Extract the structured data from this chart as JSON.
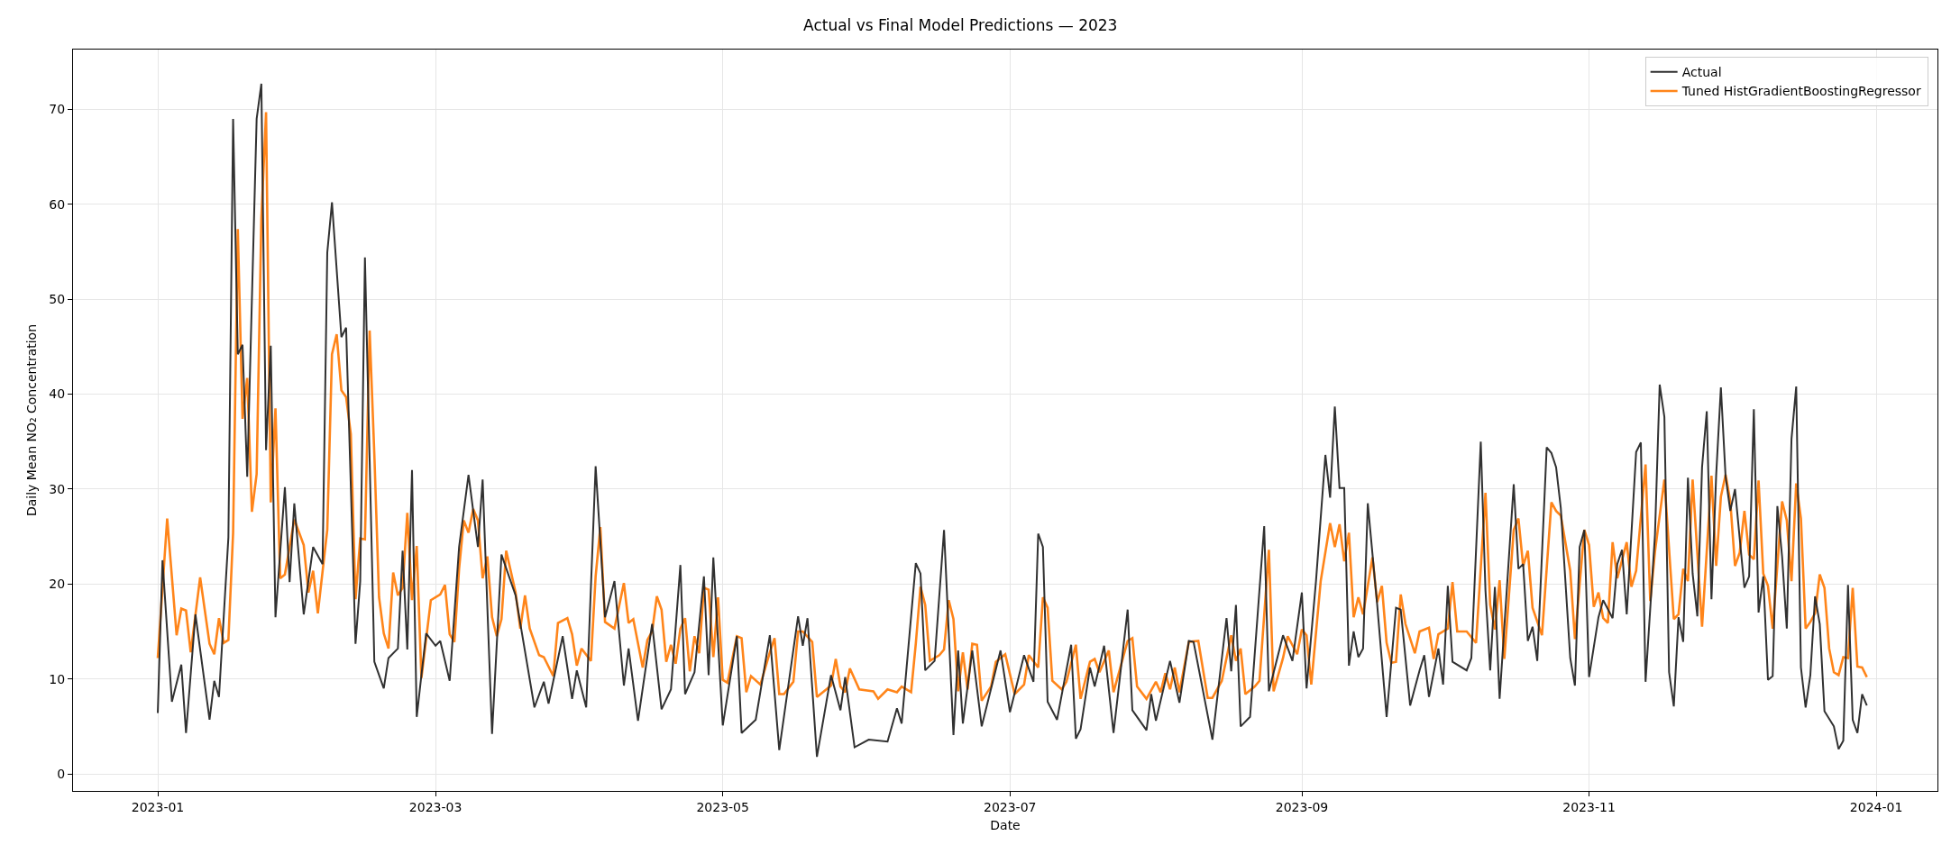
{
  "chart_data": {
    "type": "line",
    "title": "Actual vs Final Model Predictions — 2023",
    "xlabel": "Date",
    "ylabel": "Daily Mean NO₂ Concentration",
    "xlim": [
      "2022-12-14",
      "2024-01-14"
    ],
    "xticks": [
      {
        "value": "2023-01-01",
        "label": "2023-01"
      },
      {
        "value": "2023-03-01",
        "label": "2023-03"
      },
      {
        "value": "2023-05-01",
        "label": "2023-05"
      },
      {
        "value": "2023-07-01",
        "label": "2023-07"
      },
      {
        "value": "2023-09-01",
        "label": "2023-09"
      },
      {
        "value": "2023-11-01",
        "label": "2023-11"
      },
      {
        "value": "2024-01-01",
        "label": "2024-01"
      }
    ],
    "ylim": [
      -1.8,
      76.3
    ],
    "yticks": [
      0,
      10,
      20,
      30,
      40,
      50,
      60,
      70
    ],
    "grid": true,
    "legend": "top right",
    "marker": "none",
    "line_style": "solid",
    "series": [
      {
        "name": "Actual",
        "color": "#262626",
        "x": [
          "2023-01-01",
          "2023-01-02",
          "2023-01-04",
          "2023-01-06",
          "2023-01-07",
          "2023-01-09",
          "2023-01-12",
          "2023-01-13",
          "2023-01-14",
          "2023-01-16",
          "2023-01-17",
          "2023-01-18",
          "2023-01-19",
          "2023-01-20",
          "2023-01-22",
          "2023-01-23",
          "2023-01-24",
          "2023-01-25",
          "2023-01-26",
          "2023-01-28",
          "2023-01-29",
          "2023-01-30",
          "2023-02-01",
          "2023-02-03",
          "2023-02-05",
          "2023-02-06",
          "2023-02-07",
          "2023-02-09",
          "2023-02-10",
          "2023-02-12",
          "2023-02-13",
          "2023-02-14",
          "2023-02-16",
          "2023-02-18",
          "2023-02-19",
          "2023-02-21",
          "2023-02-22",
          "2023-02-23",
          "2023-02-24",
          "2023-02-25",
          "2023-02-27",
          "2023-03-01",
          "2023-03-02",
          "2023-03-04",
          "2023-03-06",
          "2023-03-08",
          "2023-03-10",
          "2023-03-11",
          "2023-03-13",
          "2023-03-15",
          "2023-03-18",
          "2023-03-22",
          "2023-03-24",
          "2023-03-25",
          "2023-03-28",
          "2023-03-30",
          "2023-03-31",
          "2023-04-02",
          "2023-04-04",
          "2023-04-06",
          "2023-04-08",
          "2023-04-10",
          "2023-04-11",
          "2023-04-13",
          "2023-04-16",
          "2023-04-18",
          "2023-04-20",
          "2023-04-22",
          "2023-04-23",
          "2023-04-25",
          "2023-04-27",
          "2023-04-28",
          "2023-04-29",
          "2023-05-01",
          "2023-05-04",
          "2023-05-05",
          "2023-05-08",
          "2023-05-11",
          "2023-05-13",
          "2023-05-17",
          "2023-05-18",
          "2023-05-19",
          "2023-05-21",
          "2023-05-24",
          "2023-05-26",
          "2023-05-27",
          "2023-05-29",
          "2023-06-01",
          "2023-06-05",
          "2023-06-07",
          "2023-06-08",
          "2023-06-11",
          "2023-06-12",
          "2023-06-13",
          "2023-06-15",
          "2023-06-17",
          "2023-06-19",
          "2023-06-20",
          "2023-06-21",
          "2023-06-23",
          "2023-06-25",
          "2023-06-29",
          "2023-07-01",
          "2023-07-04",
          "2023-07-06",
          "2023-07-07",
          "2023-07-08",
          "2023-07-09",
          "2023-07-11",
          "2023-07-14",
          "2023-07-15",
          "2023-07-16",
          "2023-07-18",
          "2023-07-19",
          "2023-07-21",
          "2023-07-23",
          "2023-07-26",
          "2023-07-27",
          "2023-07-30",
          "2023-07-31",
          "2023-08-01",
          "2023-08-04",
          "2023-08-06",
          "2023-08-08",
          "2023-08-09",
          "2023-08-13",
          "2023-08-16",
          "2023-08-17",
          "2023-08-18",
          "2023-08-19",
          "2023-08-21",
          "2023-08-24",
          "2023-08-25",
          "2023-08-28",
          "2023-08-30",
          "2023-09-01",
          "2023-09-02",
          "2023-09-04",
          "2023-09-06",
          "2023-09-07",
          "2023-09-08",
          "2023-09-09",
          "2023-09-10",
          "2023-09-11",
          "2023-09-12",
          "2023-09-13",
          "2023-09-14",
          "2023-09-15",
          "2023-09-17",
          "2023-09-19",
          "2023-09-21",
          "2023-09-22",
          "2023-09-24",
          "2023-09-26",
          "2023-09-27",
          "2023-09-28",
          "2023-09-30",
          "2023-10-01",
          "2023-10-02",
          "2023-10-03",
          "2023-10-06",
          "2023-10-07",
          "2023-10-09",
          "2023-10-10",
          "2023-10-11",
          "2023-10-12",
          "2023-10-13",
          "2023-10-16",
          "2023-10-17",
          "2023-10-18",
          "2023-10-19",
          "2023-10-20",
          "2023-10-21",
          "2023-10-23",
          "2023-10-24",
          "2023-10-25",
          "2023-10-26",
          "2023-10-28",
          "2023-10-29",
          "2023-10-30",
          "2023-10-31",
          "2023-11-01",
          "2023-11-03",
          "2023-11-04",
          "2023-11-06",
          "2023-11-07",
          "2023-11-08",
          "2023-11-09",
          "2023-11-11",
          "2023-11-12",
          "2023-11-13",
          "2023-11-15",
          "2023-11-16",
          "2023-11-17",
          "2023-11-18",
          "2023-11-19",
          "2023-11-20",
          "2023-11-21",
          "2023-11-22",
          "2023-11-23",
          "2023-11-24",
          "2023-11-25",
          "2023-11-26",
          "2023-11-27",
          "2023-11-28",
          "2023-11-29",
          "2023-11-30",
          "2023-12-01",
          "2023-12-02",
          "2023-12-04",
          "2023-12-05",
          "2023-12-06",
          "2023-12-07",
          "2023-12-08",
          "2023-12-09",
          "2023-12-10",
          "2023-12-11",
          "2023-12-12",
          "2023-12-13",
          "2023-12-14",
          "2023-12-15",
          "2023-12-16",
          "2023-12-17",
          "2023-12-18",
          "2023-12-19",
          "2023-12-20",
          "2023-12-21",
          "2023-12-23",
          "2023-12-24",
          "2023-12-25",
          "2023-12-26",
          "2023-12-27",
          "2023-12-28",
          "2023-12-29",
          "2023-12-30"
        ],
        "values": [
          6.4,
          22.5,
          7.6,
          11.5,
          4.3,
          16.8,
          5.7,
          9.8,
          8.1,
          24.9,
          69,
          44.2,
          45.2,
          31.3,
          69,
          72.7,
          34.1,
          45.1,
          16.5,
          30.2,
          20.2,
          28.5,
          16.8,
          23.9,
          22.1,
          54.9,
          60.2,
          46,
          47,
          13.7,
          20.3,
          54.4,
          11.8,
          9,
          12.2,
          13.2,
          23.5,
          13.1,
          32,
          6,
          14.8,
          13.5,
          14,
          9.8,
          23.9,
          31.5,
          23.9,
          31,
          4.2,
          23.1,
          18.8,
          7,
          9.7,
          7.4,
          14.5,
          7.9,
          10.9,
          7,
          32.4,
          16.5,
          20.3,
          9.3,
          13.2,
          5.6,
          15.8,
          6.8,
          8.9,
          22,
          8.4,
          10.7,
          20.8,
          10.4,
          22.8,
          5.1,
          14.5,
          4.3,
          5.7,
          14.6,
          2.5,
          16.6,
          13.5,
          16.4,
          1.8,
          10.4,
          6.7,
          10.2,
          2.8,
          3.6,
          3.4,
          6.9,
          5.3,
          22.2,
          21.1,
          10.9,
          11.9,
          25.7,
          4.1,
          13,
          5.3,
          13,
          5,
          13,
          6.5,
          12.5,
          9.7,
          25.3,
          23.9,
          7.6,
          5.7,
          13.6,
          3.7,
          4.7,
          11.2,
          9.2,
          13.5,
          4.3,
          17.3,
          6.7,
          4.6,
          8.4,
          5.6,
          11.9,
          7.5,
          14,
          13.9,
          3.6,
          16.4,
          10.8,
          17.8,
          5,
          6,
          26.1,
          8.7,
          14.6,
          11.9,
          19.1,
          9,
          20.3,
          33.6,
          29.1,
          38.7,
          30.1,
          30.1,
          11.4,
          15,
          12.3,
          13.2,
          28.5,
          17.8,
          6,
          17.5,
          17.3,
          7.2,
          10.9,
          12.5,
          8.1,
          13.2,
          9.4,
          19.8,
          11.8,
          10.9,
          12.2,
          35,
          19.3,
          10.9,
          19.7,
          7.9,
          30.5,
          21.6,
          22.1,
          14,
          15.5,
          11.9,
          34.4,
          33.8,
          32.3,
          28,
          12.2,
          9.3,
          23.9,
          25.7,
          10.2,
          16.5,
          18.3,
          16.4,
          22.1,
          23.6,
          16.8,
          33.9,
          34.9,
          9.7,
          25.2,
          41,
          37.6,
          10.7,
          7.1,
          16.5,
          13.9,
          31.2,
          21.1,
          16.6,
          32.3,
          38.2,
          18.4,
          31.5,
          40.7,
          31.3,
          27.7,
          30,
          19.6,
          20.8,
          38.4,
          17,
          20.8,
          9.9,
          10.3,
          28.2,
          22.9,
          15.3,
          35.3,
          40.8,
          11.2,
          7,
          10.4,
          18.7,
          15.8,
          6.6,
          5,
          2.6,
          3.5,
          19.9,
          5.7,
          4.3,
          8.4,
          7.2
        ]
      },
      {
        "name": "Tuned HistGradientBoostingRegressor",
        "color": "#ff7f0e",
        "x": [
          "2023-01-01",
          "2023-01-03",
          "2023-01-05",
          "2023-01-06",
          "2023-01-07",
          "2023-01-08",
          "2023-01-10",
          "2023-01-12",
          "2023-01-13",
          "2023-01-14",
          "2023-01-15",
          "2023-01-16",
          "2023-01-17",
          "2023-01-18",
          "2023-01-19",
          "2023-01-20",
          "2023-01-21",
          "2023-01-22",
          "2023-01-23",
          "2023-01-24",
          "2023-01-25",
          "2023-01-26",
          "2023-01-27",
          "2023-01-28",
          "2023-01-30",
          "2023-02-01",
          "2023-02-02",
          "2023-02-03",
          "2023-02-04",
          "2023-02-06",
          "2023-02-07",
          "2023-02-08",
          "2023-02-09",
          "2023-02-10",
          "2023-02-11",
          "2023-02-12",
          "2023-02-13",
          "2023-02-14",
          "2023-02-15",
          "2023-02-16",
          "2023-02-17",
          "2023-02-18",
          "2023-02-19",
          "2023-02-20",
          "2023-02-21",
          "2023-02-22",
          "2023-02-23",
          "2023-02-24",
          "2023-02-25",
          "2023-02-26",
          "2023-02-28",
          "2023-03-02",
          "2023-03-03",
          "2023-03-04",
          "2023-03-05",
          "2023-03-06",
          "2023-03-07",
          "2023-03-08",
          "2023-03-09",
          "2023-03-10",
          "2023-03-11",
          "2023-03-12",
          "2023-03-13",
          "2023-03-14",
          "2023-03-15",
          "2023-03-16",
          "2023-03-18",
          "2023-03-19",
          "2023-03-20",
          "2023-03-21",
          "2023-03-23",
          "2023-03-24",
          "2023-03-26",
          "2023-03-27",
          "2023-03-29",
          "2023-03-30",
          "2023-03-31",
          "2023-04-01",
          "2023-04-03",
          "2023-04-04",
          "2023-04-05",
          "2023-04-06",
          "2023-04-08",
          "2023-04-10",
          "2023-04-11",
          "2023-04-12",
          "2023-04-14",
          "2023-04-15",
          "2023-04-16",
          "2023-04-17",
          "2023-04-18",
          "2023-04-19",
          "2023-04-20",
          "2023-04-21",
          "2023-04-22",
          "2023-04-23",
          "2023-04-24",
          "2023-04-25",
          "2023-04-26",
          "2023-04-27",
          "2023-04-28",
          "2023-04-29",
          "2023-04-30",
          "2023-05-01",
          "2023-05-02",
          "2023-05-04",
          "2023-05-05",
          "2023-05-06",
          "2023-05-07",
          "2023-05-09",
          "2023-05-11",
          "2023-05-12",
          "2023-05-13",
          "2023-05-14",
          "2023-05-16",
          "2023-05-17",
          "2023-05-18",
          "2023-05-20",
          "2023-05-21",
          "2023-05-24",
          "2023-05-25",
          "2023-05-26",
          "2023-05-27",
          "2023-05-28",
          "2023-05-30",
          "2023-06-02",
          "2023-06-03",
          "2023-06-05",
          "2023-06-07",
          "2023-06-08",
          "2023-06-10",
          "2023-06-11",
          "2023-06-12",
          "2023-06-13",
          "2023-06-14",
          "2023-06-16",
          "2023-06-17",
          "2023-06-18",
          "2023-06-19",
          "2023-06-20",
          "2023-06-21",
          "2023-06-22",
          "2023-06-23",
          "2023-06-24",
          "2023-06-25",
          "2023-06-27",
          "2023-06-28",
          "2023-06-30",
          "2023-07-02",
          "2023-07-04",
          "2023-07-05",
          "2023-07-07",
          "2023-07-08",
          "2023-07-09",
          "2023-07-10",
          "2023-07-12",
          "2023-07-13",
          "2023-07-15",
          "2023-07-16",
          "2023-07-18",
          "2023-07-19",
          "2023-07-20",
          "2023-07-22",
          "2023-07-23",
          "2023-07-26",
          "2023-07-27",
          "2023-07-28",
          "2023-07-30",
          "2023-08-01",
          "2023-08-02",
          "2023-08-03",
          "2023-08-04",
          "2023-08-05",
          "2023-08-06",
          "2023-08-08",
          "2023-08-10",
          "2023-08-12",
          "2023-08-13",
          "2023-08-15",
          "2023-08-17",
          "2023-08-18",
          "2023-08-19",
          "2023-08-20",
          "2023-08-22",
          "2023-08-23",
          "2023-08-25",
          "2023-08-26",
          "2023-08-28",
          "2023-08-29",
          "2023-08-31",
          "2023-09-01",
          "2023-09-02",
          "2023-09-03",
          "2023-09-05",
          "2023-09-07",
          "2023-09-08",
          "2023-09-09",
          "2023-09-10",
          "2023-09-11",
          "2023-09-12",
          "2023-09-13",
          "2023-09-14",
          "2023-09-16",
          "2023-09-17",
          "2023-09-18",
          "2023-09-19",
          "2023-09-20",
          "2023-09-21",
          "2023-09-22",
          "2023-09-23",
          "2023-09-25",
          "2023-09-26",
          "2023-09-28",
          "2023-09-29",
          "2023-09-30",
          "2023-10-02",
          "2023-10-03",
          "2023-10-04",
          "2023-10-06",
          "2023-10-08",
          "2023-10-10",
          "2023-10-11",
          "2023-10-12",
          "2023-10-13",
          "2023-10-14",
          "2023-10-16",
          "2023-10-17",
          "2023-10-18",
          "2023-10-19",
          "2023-10-20",
          "2023-10-22",
          "2023-10-24",
          "2023-10-25",
          "2023-10-26",
          "2023-10-28",
          "2023-10-29",
          "2023-10-31",
          "2023-11-01",
          "2023-11-02",
          "2023-11-03",
          "2023-11-04",
          "2023-11-05",
          "2023-11-06",
          "2023-11-07",
          "2023-11-09",
          "2023-11-10",
          "2023-11-11",
          "2023-11-13",
          "2023-11-14",
          "2023-11-15",
          "2023-11-17",
          "2023-11-19",
          "2023-11-20",
          "2023-11-21",
          "2023-11-22",
          "2023-11-23",
          "2023-11-25",
          "2023-11-27",
          "2023-11-28",
          "2023-11-29",
          "2023-11-30",
          "2023-12-01",
          "2023-12-02",
          "2023-12-03",
          "2023-12-04",
          "2023-12-05",
          "2023-12-06",
          "2023-12-07",
          "2023-12-08",
          "2023-12-09",
          "2023-12-10",
          "2023-12-12",
          "2023-12-13",
          "2023-12-14",
          "2023-12-15",
          "2023-12-16",
          "2023-12-17",
          "2023-12-18",
          "2023-12-19",
          "2023-12-20",
          "2023-12-21",
          "2023-12-22",
          "2023-12-23",
          "2023-12-24",
          "2023-12-25",
          "2023-12-26",
          "2023-12-27",
          "2023-12-28",
          "2023-12-29",
          "2023-12-30"
        ],
        "values": [
          12.2,
          26.9,
          14.6,
          17.4,
          17.2,
          12.8,
          20.7,
          13.7,
          12.6,
          16.4,
          13.8,
          14.1,
          25.4,
          57.4,
          37.4,
          41.7,
          27.6,
          31.6,
          58.5,
          69.7,
          28.6,
          38.5,
          20.6,
          21,
          26.8,
          24.1,
          19.1,
          21.4,
          16.9,
          25.7,
          44.2,
          46.3,
          40.4,
          39.7,
          35.8,
          18.4,
          24.8,
          24.7,
          46.7,
          33.6,
          18.6,
          14.8,
          13.2,
          21.2,
          18.8,
          19.6,
          27.5,
          18.3,
          24,
          10.1,
          18.3,
          18.9,
          19.9,
          14.7,
          13.9,
          21.6,
          26.7,
          25.4,
          27.9,
          26.7,
          20.6,
          22.9,
          16.5,
          14.5,
          16.3,
          23.5,
          19.1,
          15.3,
          18.8,
          15.3,
          12.5,
          12.3,
          10.3,
          15.9,
          16.4,
          14.7,
          11.4,
          13.2,
          11.9,
          20.8,
          26,
          16,
          15.3,
          20.1,
          15.9,
          16.3,
          11.2,
          14.1,
          15,
          18.7,
          17.3,
          11.8,
          13.6,
          11.6,
          15.3,
          16.4,
          10.8,
          14.5,
          12.7,
          19.6,
          19.4,
          12.3,
          18.6,
          9.9,
          9.6,
          14.5,
          14.3,
          8.6,
          10.3,
          9.4,
          12.8,
          14.3,
          8.4,
          8.4,
          9.7,
          15,
          15,
          13.9,
          8.1,
          9.3,
          12.1,
          9.2,
          8.6,
          11.1,
          8.9,
          8.7,
          7.9,
          8.9,
          8.6,
          9.2,
          8.6,
          13.7,
          19.7,
          17.8,
          11.9,
          12.5,
          13.1,
          18.3,
          16.3,
          8.7,
          12.8,
          8.9,
          13.7,
          13.6,
          7.7,
          9.2,
          11.8,
          12.6,
          8.4,
          9.4,
          12.5,
          11.2,
          18.6,
          17.5,
          9.8,
          8.9,
          9.7,
          13.6,
          7.9,
          11.8,
          12.1,
          10.7,
          13,
          8.6,
          14,
          14.3,
          9.2,
          7.9,
          9.7,
          8.6,
          10.6,
          8.9,
          11.2,
          8.6,
          13.9,
          14,
          8,
          8,
          9.8,
          14.6,
          11.9,
          13.2,
          8.4,
          9.2,
          9.8,
          23.6,
          8.7,
          12.2,
          14.5,
          12.6,
          15.2,
          14.6,
          9.4,
          20.3,
          26.4,
          23.9,
          26.3,
          22.4,
          25.4,
          16.5,
          18.6,
          16.8,
          22.8,
          18.1,
          19.8,
          13.8,
          11.7,
          11.8,
          18.9,
          15.8,
          12.7,
          15,
          15.4,
          12.1,
          14.7,
          15.3,
          20.2,
          15,
          15,
          13.8,
          29.6,
          17.8,
          15.2,
          20.4,
          12.1,
          25.7,
          26.9,
          21.9,
          23.5,
          17.5,
          14.6,
          28.6,
          27.7,
          27.2,
          21.4,
          14.2,
          25.7,
          24.1,
          17.6,
          19.1,
          16.4,
          15.9,
          24.4,
          20.6,
          24.4,
          19.7,
          21.4,
          32.6,
          18.2,
          23.4,
          31,
          16.3,
          16.8,
          21.6,
          20.3,
          31,
          15.5,
          31.4,
          21.9,
          29.2,
          31.5,
          28.7,
          21.9,
          23.3,
          27.7,
          23.1,
          22.6,
          30.9,
          21.1,
          19.8,
          15.3,
          28.7,
          26.7,
          20.3,
          30.6,
          26.9,
          15.3,
          16,
          16.9,
          21,
          19.6,
          13.2,
          10.7,
          10.4,
          12.3,
          12.2,
          19.6,
          11.3,
          11.2,
          10.2
        ]
      }
    ]
  }
}
